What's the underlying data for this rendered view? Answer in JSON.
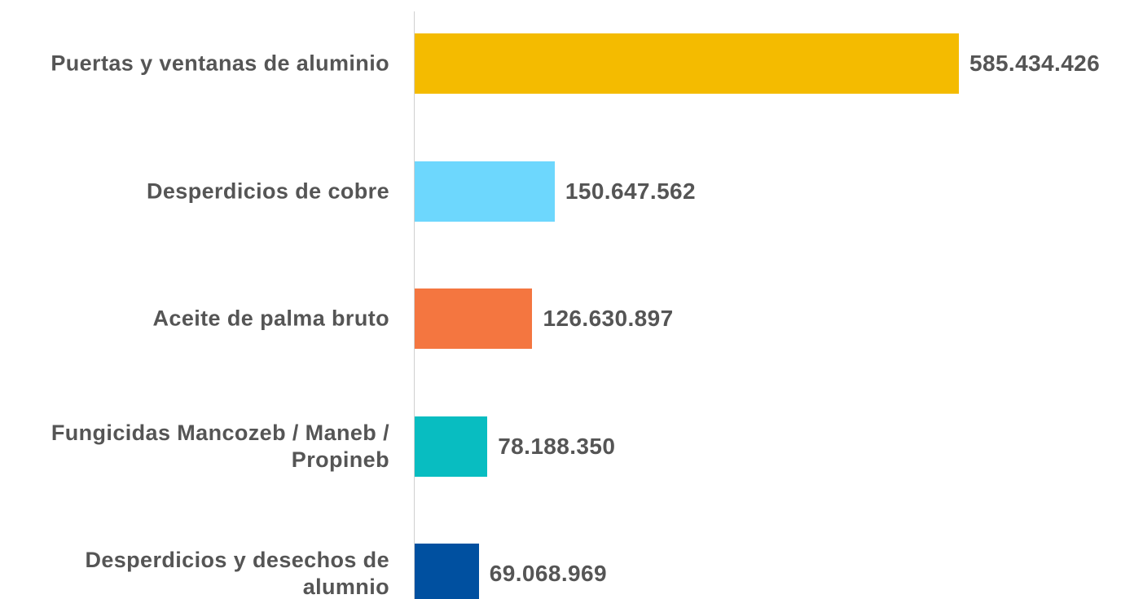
{
  "chart_data": {
    "type": "bar",
    "orientation": "horizontal",
    "categories": [
      "Puertas y ventanas de aluminio",
      "Desperdicios de cobre",
      "Aceite de palma bruto",
      "Fungicidas Mancozeb / Maneb / Propineb",
      "Desperdicios y desechos de alumnio"
    ],
    "values": [
      585434426,
      150647562,
      126630897,
      78188350,
      69068969
    ],
    "value_labels": [
      "585.434.426",
      "150.647.562",
      "126.630.897",
      "78.188.350",
      "69.068.969"
    ],
    "colors": [
      "#f4bb00",
      "#6dd7fd",
      "#f47640",
      "#08bdc1",
      "#0050a0"
    ]
  }
}
